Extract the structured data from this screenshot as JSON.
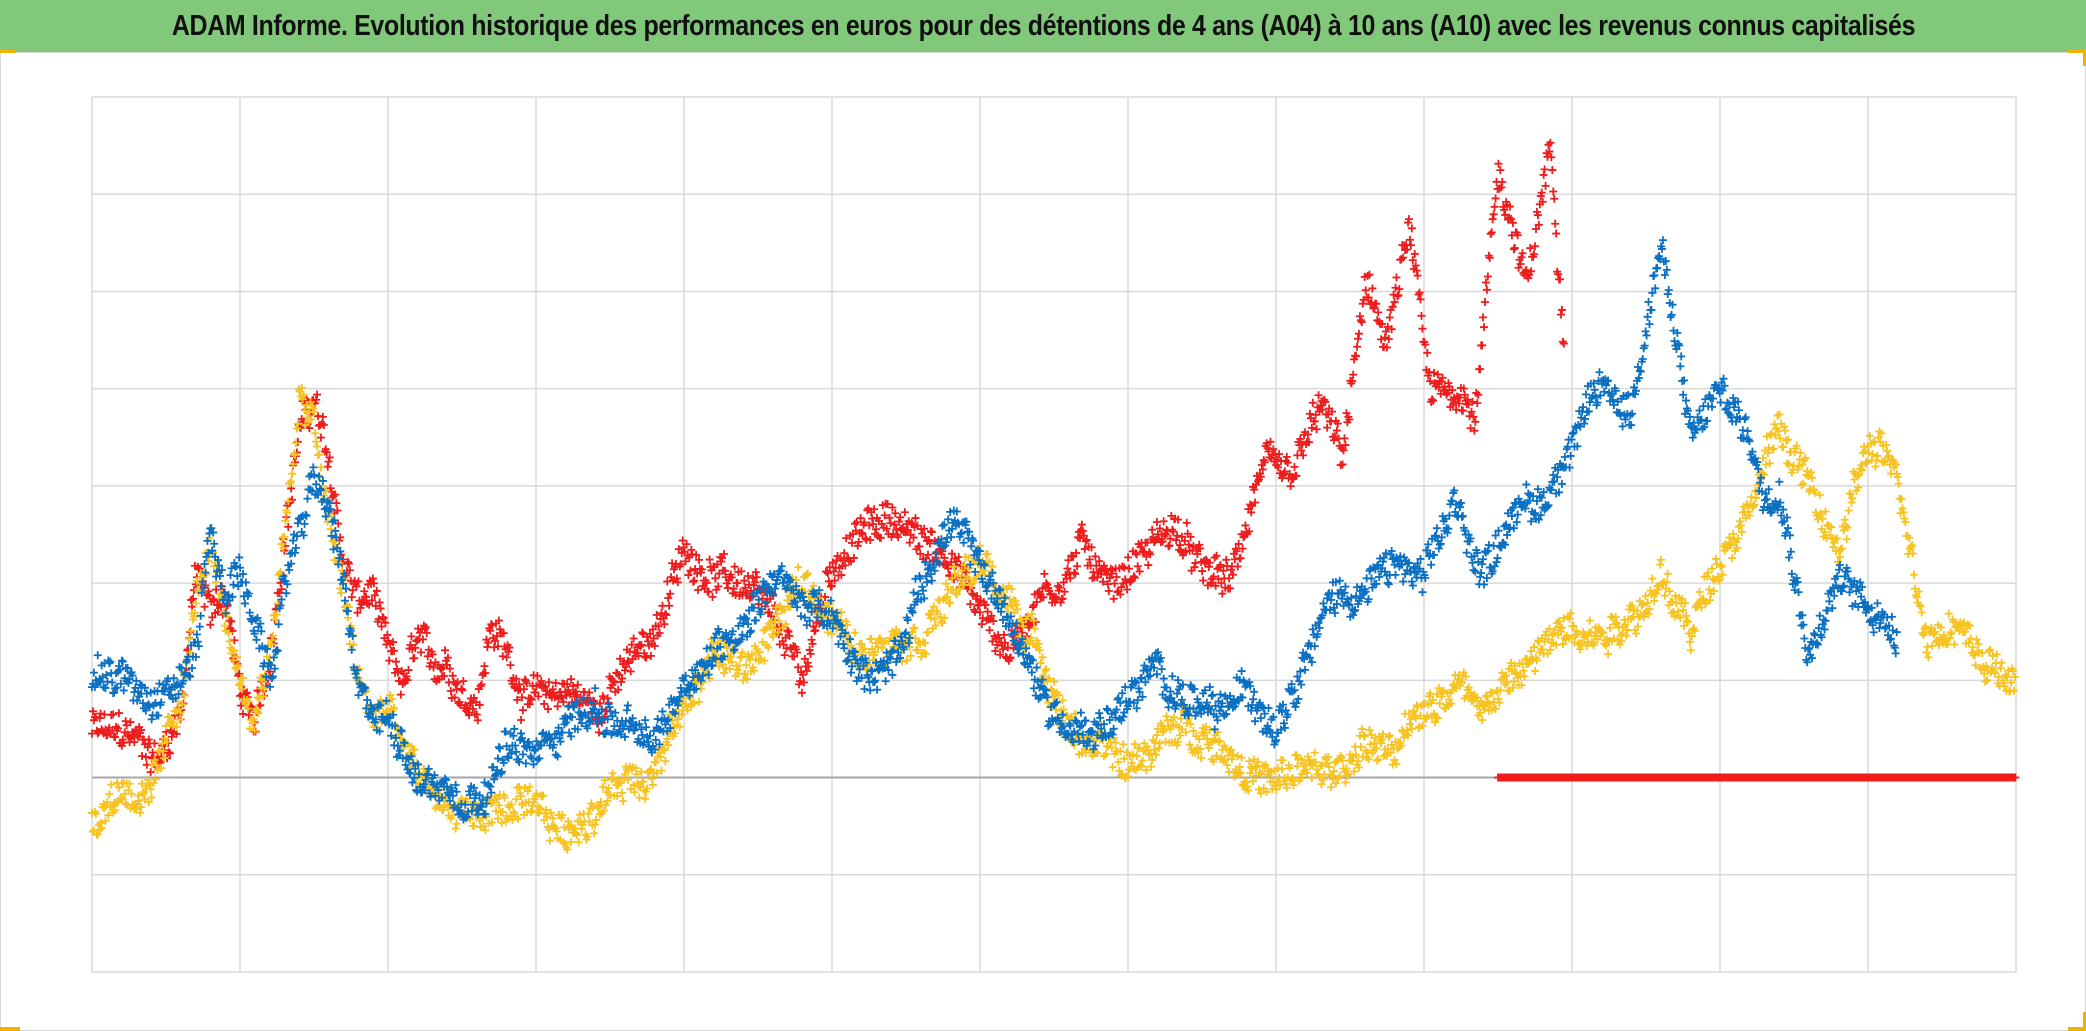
{
  "header": {
    "title": "ADAM Informe. Evolution historique des performances en euros pour des détentions de 4 ans (A04) à 10 ans (A10) avec les revenus connus capitalisés"
  },
  "colors": {
    "title_bg": "#82c87a",
    "corner_accent": "#f0b400",
    "grid": "#d9d9d9",
    "zero_axis": "#a6a6a6"
  },
  "chart_data": {
    "type": "scatter",
    "title": "ADAM Informe. Evolution historique des performances en euros pour des détentions de 4 ans (A04) à 10 ans (A10) avec les revenus connus capitalisés",
    "xlabel": "",
    "ylabel": "",
    "x_range": [
      0,
      13
    ],
    "ylim": [
      -2,
      7
    ],
    "grid": true,
    "tick_labels_visible": false,
    "legend": "none",
    "marker": "+",
    "series": [
      {
        "name": "red",
        "color": "#ee1c1c",
        "x": [
          0,
          0.3,
          0.45,
          0.6,
          0.7,
          0.8,
          0.9,
          1.0,
          1.1,
          1.2,
          1.3,
          1.4,
          1.5,
          1.6,
          1.7,
          1.8,
          1.9,
          2.0,
          2.05,
          2.1,
          2.2,
          2.3,
          2.4,
          2.5,
          2.6,
          2.7,
          2.8,
          2.9,
          3.0,
          3.2,
          3.4,
          3.6,
          3.8,
          4.0,
          4.2,
          4.4,
          4.6,
          4.8,
          5.0,
          5.2,
          5.4,
          5.6,
          5.8,
          6.0,
          6.2,
          6.4,
          6.55,
          6.7,
          6.9,
          7.1,
          7.3,
          7.5,
          7.7,
          7.9,
          8.1,
          8.3,
          8.45,
          8.6,
          8.75,
          8.9,
          9.05,
          9.2,
          9.35,
          9.5,
          9.7,
          9.85,
          9.95
        ],
        "y": [
          0.5,
          0.4,
          0.2,
          0.7,
          2.1,
          1.7,
          1.9,
          0.9,
          0.5,
          1.2,
          2.5,
          3.6,
          3.9,
          3.2,
          2.2,
          1.8,
          1.9,
          1.2,
          1.1,
          0.9,
          1.4,
          1.1,
          1.2,
          0.9,
          0.8,
          1.6,
          1.3,
          0.9,
          0.8,
          0.9,
          0.7,
          1.1,
          1.5,
          2.3,
          2.1,
          2.0,
          1.6,
          1.0,
          2.2,
          2.5,
          2.7,
          2.4,
          2.3,
          1.7,
          1.3,
          1.9,
          2.0,
          2.4,
          2.0,
          2.3,
          2.6,
          2.1,
          2.0,
          3.2,
          3.0,
          3.8,
          3.3,
          5.0,
          4.5,
          5.6,
          3.9,
          4.0,
          3.8,
          6.3,
          5.0,
          6.5,
          4.5
        ]
      },
      {
        "name": "blue",
        "color": "#0b70c2",
        "x": [
          0,
          0.2,
          0.4,
          0.6,
          0.7,
          0.8,
          0.9,
          1.0,
          1.1,
          1.2,
          1.3,
          1.4,
          1.5,
          1.6,
          1.7,
          1.8,
          1.9,
          2.0,
          2.1,
          2.2,
          2.4,
          2.6,
          2.8,
          3.0,
          3.2,
          3.4,
          3.6,
          3.8,
          4.0,
          4.2,
          4.4,
          4.6,
          4.8,
          5.0,
          5.2,
          5.4,
          5.6,
          5.8,
          6.0,
          6.2,
          6.4,
          6.6,
          6.8,
          7.0,
          7.2,
          7.4,
          7.6,
          7.8,
          8.0,
          8.2,
          8.4,
          8.6,
          8.8,
          9.0,
          9.2,
          9.4,
          9.6,
          9.8,
          10.0,
          10.2,
          10.4,
          10.6,
          10.8,
          11.0,
          11.2,
          11.3,
          11.4,
          11.6,
          11.8,
          12.0,
          12.2
        ],
        "y": [
          1.1,
          1.0,
          0.9,
          1.0,
          1.3,
          2.6,
          1.8,
          2.2,
          1.5,
          1.0,
          1.9,
          2.6,
          3.1,
          2.7,
          2.0,
          0.8,
          0.6,
          0.6,
          0.4,
          0.0,
          -0.1,
          -0.2,
          0.3,
          0.2,
          0.6,
          0.7,
          0.5,
          0.3,
          1.0,
          1.3,
          1.6,
          2.1,
          1.8,
          1.6,
          1.0,
          1.2,
          2.0,
          2.6,
          2.2,
          1.6,
          0.9,
          0.5,
          0.5,
          0.8,
          1.1,
          0.8,
          0.6,
          0.9,
          0.6,
          1.3,
          1.9,
          1.9,
          2.2,
          2.0,
          2.8,
          2.1,
          2.8,
          2.8,
          3.5,
          4.0,
          3.8,
          5.5,
          3.5,
          4.0,
          3.5,
          2.9,
          3.1,
          1.3,
          2.0,
          1.8,
          1.5
        ]
      },
      {
        "name": "yellow",
        "color": "#f6c320",
        "x": [
          0,
          0.2,
          0.4,
          0.6,
          0.7,
          0.8,
          0.9,
          1.0,
          1.1,
          1.2,
          1.3,
          1.4,
          1.5,
          1.6,
          1.7,
          1.8,
          1.9,
          2.0,
          2.1,
          2.2,
          2.4,
          2.6,
          2.8,
          3.0,
          3.2,
          3.4,
          3.6,
          3.8,
          4.0,
          4.2,
          4.4,
          4.6,
          4.8,
          5.0,
          5.2,
          5.4,
          5.6,
          5.8,
          6.0,
          6.2,
          6.4,
          6.6,
          6.8,
          7.0,
          7.2,
          7.4,
          7.6,
          7.8,
          8.0,
          8.2,
          8.4,
          8.6,
          8.8,
          9.0,
          9.2,
          9.4,
          9.6,
          9.8,
          10.0,
          10.2,
          10.4,
          10.6,
          10.8,
          11.0,
          11.2,
          11.4,
          11.6,
          11.8,
          12.0,
          12.2,
          12.4,
          12.6,
          12.8,
          13.0
        ],
        "y": [
          -0.5,
          -0.1,
          -0.2,
          0.8,
          1.8,
          2.4,
          1.5,
          1.0,
          0.6,
          1.3,
          2.5,
          3.9,
          3.6,
          2.6,
          1.9,
          1.0,
          0.6,
          0.7,
          0.3,
          0.0,
          -0.3,
          -0.4,
          -0.3,
          -0.4,
          -0.6,
          -0.3,
          0.0,
          0.1,
          0.7,
          1.3,
          1.1,
          1.5,
          2.0,
          1.7,
          1.2,
          1.5,
          1.5,
          1.9,
          2.2,
          1.8,
          1.3,
          0.5,
          0.3,
          0.1,
          0.4,
          0.5,
          0.4,
          0.1,
          -0.1,
          0.1,
          0.0,
          0.4,
          0.2,
          0.7,
          1.0,
          0.8,
          1.0,
          1.3,
          1.6,
          1.5,
          1.7,
          2.0,
          1.5,
          2.3,
          2.8,
          3.6,
          3.0,
          2.3,
          3.4,
          3.1,
          1.5,
          1.6,
          1.2,
          0.9
        ]
      },
      {
        "name": "red-baseline",
        "color": "#ee1c1c",
        "x_start": 9.5,
        "x_end": 13.0,
        "y": 0.0
      }
    ]
  }
}
